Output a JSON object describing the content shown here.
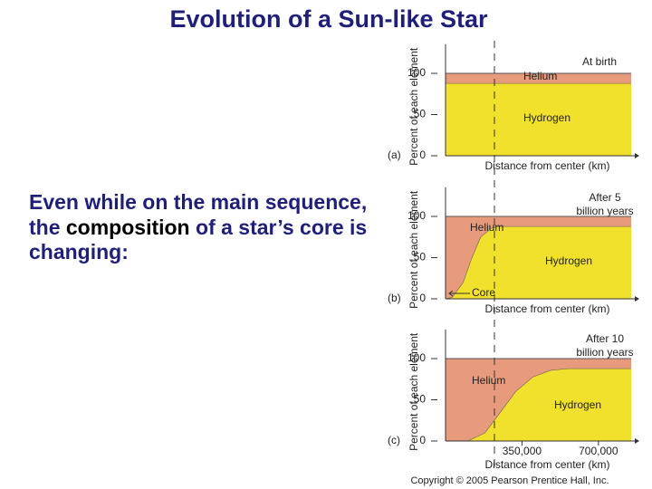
{
  "slide": {
    "title": "Evolution of a Sun-like Star",
    "body": [
      "Even while on the main sequence, the ",
      "composition",
      " of a star’s core is changing:"
    ],
    "copyright": "Copyright © 2005 Pearson Prentice Hall, Inc."
  },
  "chart_data": [
    {
      "type": "area",
      "stacked": true,
      "panel_label": "(a)",
      "annotation": [
        "At birth"
      ],
      "y_label": "Percent of each element",
      "x_label": "Distance from center (km)",
      "x": [
        0,
        850000
      ],
      "series": [
        {
          "name": "Hydrogen",
          "color": "#f2e12c",
          "values": [
            88,
            88
          ]
        },
        {
          "name": "Helium",
          "color": "#e89a7c",
          "values": [
            12,
            12
          ]
        }
      ],
      "xlim": [
        0,
        850000
      ],
      "ylim": [
        0,
        130
      ],
      "yticks": [
        0,
        50,
        100
      ]
    },
    {
      "type": "area",
      "stacked": true,
      "panel_label": "(b)",
      "annotation": [
        "After 5",
        "billion years"
      ],
      "core_label": "Core",
      "y_label": "Percent of each element",
      "x_label": "Distance from center (km)",
      "x": [
        0,
        30000,
        80000,
        120000,
        160000,
        210000,
        240000,
        850000
      ],
      "series": [
        {
          "name": "Hydrogen",
          "color": "#f2e12c",
          "values": [
            0,
            2,
            20,
            50,
            75,
            86,
            88,
            88
          ]
        },
        {
          "name": "Helium",
          "color": "#e89a7c",
          "values": [
            100,
            98,
            80,
            50,
            25,
            14,
            12,
            12
          ]
        }
      ],
      "xlim": [
        0,
        850000
      ],
      "ylim": [
        0,
        130
      ],
      "yticks": [
        0,
        50,
        100
      ]
    },
    {
      "type": "area",
      "stacked": true,
      "panel_label": "(c)",
      "annotation": [
        "After 10",
        "billion years"
      ],
      "y_label": "Percent of each element",
      "x_label": "Distance from center (km)",
      "x": [
        0,
        100000,
        180000,
        250000,
        320000,
        400000,
        480000,
        560000,
        850000
      ],
      "series": [
        {
          "name": "Hydrogen",
          "color": "#f2e12c",
          "values": [
            0,
            0,
            10,
            35,
            60,
            78,
            86,
            88,
            88
          ]
        },
        {
          "name": "Helium",
          "color": "#e89a7c",
          "values": [
            100,
            100,
            90,
            65,
            40,
            22,
            14,
            12,
            12
          ]
        }
      ],
      "xlim": [
        0,
        850000
      ],
      "ylim": [
        0,
        130
      ],
      "yticks": [
        0,
        50,
        100
      ],
      "xticks": [
        {
          "value": 350000,
          "label": "350,000"
        },
        {
          "value": 700000,
          "label": "700,000"
        }
      ]
    }
  ]
}
